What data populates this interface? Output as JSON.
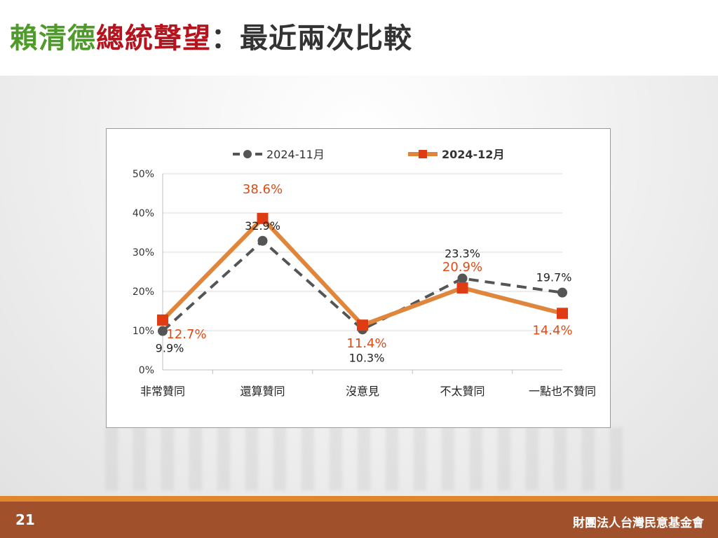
{
  "title": {
    "part1": "賴清德",
    "part2": "總統聲望",
    "part3": "：最近兩次比較",
    "colors": {
      "part1": "#4e9a2a",
      "part2": "#b4141e",
      "part3": "#333333"
    }
  },
  "footer": {
    "page_number": "21",
    "foundation": "財團法人台灣民意基金會"
  },
  "chart_data": {
    "type": "line",
    "categories": [
      "非常贊同",
      "還算贊同",
      "沒意見",
      "不太贊同",
      "一點也不贊同"
    ],
    "y_ticks": [
      "0%",
      "10%",
      "20%",
      "30%",
      "40%",
      "50%"
    ],
    "ylim": [
      0,
      50
    ],
    "grid": true,
    "legend_position": "top",
    "series": [
      {
        "name": "2024-11月",
        "values": [
          9.9,
          32.9,
          10.3,
          23.3,
          19.7
        ],
        "labels": [
          "9.9%",
          "32.9%",
          "10.3%",
          "23.3%",
          "19.7%"
        ],
        "color": "#555555",
        "label_color": "#222222",
        "style": "dashed",
        "marker": "circle"
      },
      {
        "name": "2024-12月",
        "values": [
          12.7,
          38.6,
          11.4,
          20.9,
          14.4
        ],
        "labels": [
          "12.7%",
          "38.6%",
          "11.4%",
          "20.9%",
          "14.4%"
        ],
        "color": "#e0863c",
        "marker_color": "#e03c14",
        "label_color": "#e04a14",
        "style": "solid",
        "marker": "square"
      }
    ]
  }
}
